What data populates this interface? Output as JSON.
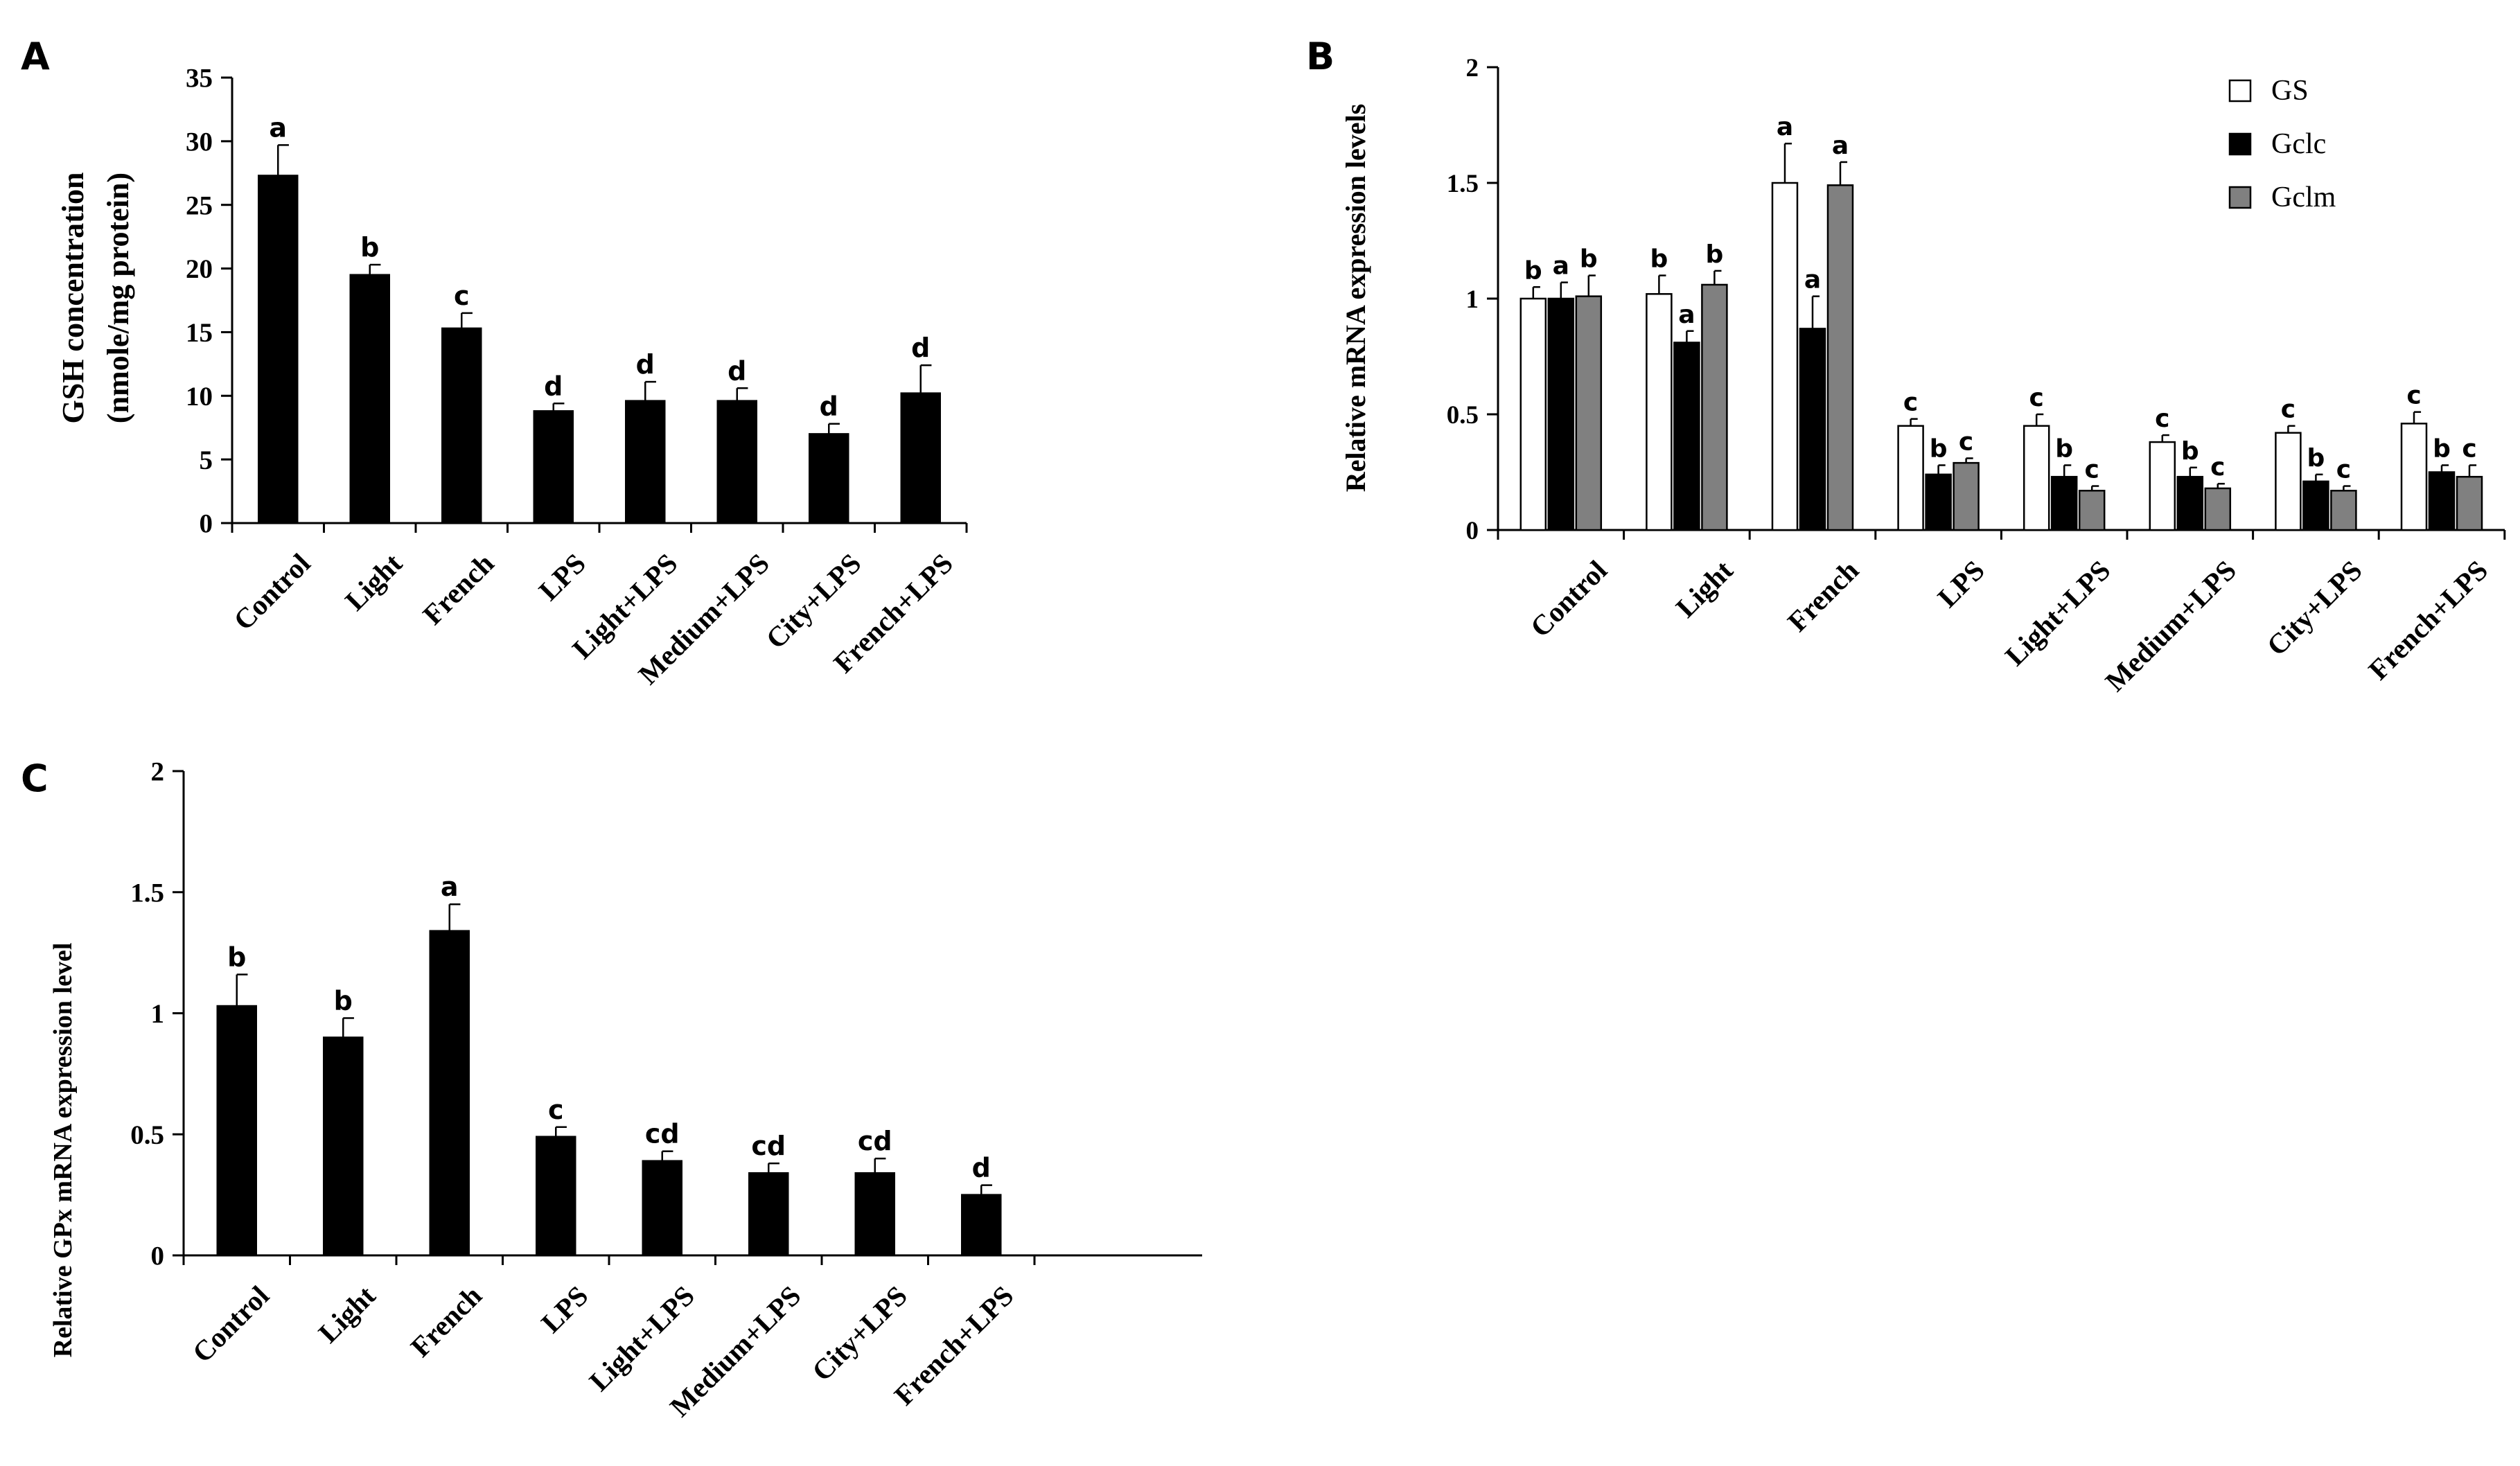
{
  "figure": {
    "colors": {
      "black": "#000000",
      "white": "#ffffff",
      "gray": "#808080"
    }
  },
  "chart_data": [
    {
      "panel_label": "A",
      "type": "bar",
      "title": "",
      "xlabel": "",
      "ylabel": "GSH concentration",
      "ylabel2": "(nmole/mg protein)",
      "ylim": [
        0,
        35
      ],
      "yticks": [
        0,
        5,
        10,
        15,
        20,
        25,
        30,
        35
      ],
      "ytick_labels": [
        "0",
        "5",
        "10",
        "15",
        "20",
        "25",
        "30",
        "35"
      ],
      "categories": [
        "Control",
        "Light",
        "French",
        "LPS",
        "Light+LPS",
        "Medium+LPS",
        "City+LPS",
        "French+LPS"
      ],
      "series": [
        {
          "name": "GSH",
          "color": "#000000",
          "values": [
            27.3,
            19.5,
            15.3,
            8.8,
            9.6,
            9.6,
            7.0,
            10.2
          ],
          "errors": [
            2.4,
            0.8,
            1.2,
            0.6,
            1.5,
            1.0,
            0.8,
            2.2
          ],
          "letters": [
            "a",
            "b",
            "c",
            "d",
            "d",
            "d",
            "d",
            "d"
          ]
        }
      ],
      "legend": []
    },
    {
      "panel_label": "B",
      "type": "bar",
      "title": "",
      "xlabel": "",
      "ylabel": "Relative mRNA expression levels",
      "ylim": [
        0,
        2
      ],
      "yticks": [
        0,
        0.5,
        1,
        1.5,
        2
      ],
      "ytick_labels": [
        "0",
        "0.5",
        "1",
        "1.5",
        "2"
      ],
      "categories": [
        "Control",
        "Light",
        "French",
        "LPS",
        "Light+LPS",
        "Medium+LPS",
        "City+LPS",
        "French+LPS"
      ],
      "series": [
        {
          "name": "GS",
          "color": "#ffffff",
          "values": [
            1.0,
            1.02,
            1.5,
            0.45,
            0.45,
            0.38,
            0.42,
            0.46
          ],
          "errors": [
            0.05,
            0.08,
            0.17,
            0.03,
            0.05,
            0.03,
            0.03,
            0.05
          ],
          "letters": [
            "b",
            "b",
            "a",
            "c",
            "c",
            "c",
            "c",
            "c"
          ]
        },
        {
          "name": "Gclc",
          "color": "#000000",
          "values": [
            1.0,
            0.81,
            0.87,
            0.24,
            0.23,
            0.23,
            0.21,
            0.25
          ],
          "errors": [
            0.07,
            0.05,
            0.14,
            0.04,
            0.05,
            0.04,
            0.03,
            0.03
          ],
          "letters": [
            "a",
            "a",
            "a",
            "b",
            "b",
            "b",
            "b",
            "b"
          ]
        },
        {
          "name": "Gclm",
          "color": "#808080",
          "values": [
            1.01,
            1.06,
            1.49,
            0.29,
            0.17,
            0.18,
            0.17,
            0.23
          ],
          "errors": [
            0.09,
            0.06,
            0.1,
            0.02,
            0.02,
            0.02,
            0.02,
            0.05
          ],
          "letters": [
            "b",
            "b",
            "a",
            "c",
            "c",
            "c",
            "c",
            "c"
          ]
        }
      ],
      "legend": [
        "GS",
        "Gclc",
        "Gclm"
      ],
      "legend_position": "top-right"
    },
    {
      "panel_label": "C",
      "type": "bar",
      "title": "",
      "xlabel": "",
      "ylabel": "Relative GPx mRNA expression level",
      "ylim": [
        0,
        2
      ],
      "yticks": [
        0,
        0.5,
        1,
        1.5,
        2
      ],
      "ytick_labels": [
        "0",
        "0.5",
        "1",
        "1.5",
        "2"
      ],
      "categories": [
        "Control",
        "Light",
        "French",
        "LPS",
        "Light+LPS",
        "Medium+LPS",
        "City+LPS",
        "French+LPS"
      ],
      "series": [
        {
          "name": "GPx",
          "color": "#000000",
          "values": [
            1.03,
            0.9,
            1.34,
            0.49,
            0.39,
            0.34,
            0.34,
            0.25
          ],
          "errors": [
            0.13,
            0.08,
            0.11,
            0.04,
            0.04,
            0.04,
            0.06,
            0.04
          ],
          "letters": [
            "b",
            "b",
            "a",
            "c",
            "cd",
            "cd",
            "cd",
            "d"
          ]
        }
      ],
      "legend": []
    }
  ]
}
